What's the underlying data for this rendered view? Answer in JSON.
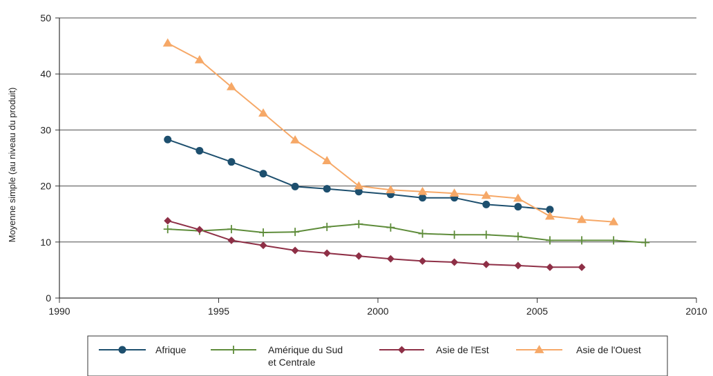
{
  "chart_data": {
    "type": "line",
    "title": "",
    "xlabel": "",
    "ylabel": "Moyenne simple (au niveau du produit)",
    "xlim": [
      1990,
      2010
    ],
    "ylim": [
      0,
      50
    ],
    "x_ticks": [
      1990,
      1995,
      2000,
      2005,
      2010
    ],
    "y_ticks": [
      0,
      10,
      20,
      30,
      40,
      50
    ],
    "grid": "horizontal",
    "legend_position": "bottom",
    "series": [
      {
        "name": "Afrique",
        "color": "#1d4f6e",
        "marker": "circle",
        "x": [
          1993.4,
          1994.4,
          1995.4,
          1996.4,
          1997.4,
          1998.4,
          1999.4,
          2000.4,
          2001.4,
          2002.4,
          2003.4,
          2004.4,
          2005.4
        ],
        "y": [
          28.3,
          26.3,
          24.3,
          22.2,
          19.9,
          19.5,
          19.0,
          18.5,
          17.9,
          17.9,
          16.7,
          16.3,
          15.8
        ]
      },
      {
        "name": "Amérique du Sud et Centrale",
        "name_lines": [
          "Amérique du Sud",
          "et Centrale"
        ],
        "color": "#5e8c3a",
        "marker": "plus",
        "x": [
          1993.4,
          1994.4,
          1995.4,
          1996.4,
          1997.4,
          1998.4,
          1999.4,
          2000.4,
          2001.4,
          2002.4,
          2003.4,
          2004.4,
          2005.4,
          2006.4,
          2007.4,
          2008.4
        ],
        "y": [
          12.3,
          12.0,
          12.3,
          11.7,
          11.8,
          12.7,
          13.2,
          12.6,
          11.5,
          11.3,
          11.3,
          11.0,
          10.3,
          10.3,
          10.3,
          9.9
        ]
      },
      {
        "name": "Asie de l'Est",
        "color": "#8e2f46",
        "marker": "diamond",
        "x": [
          1993.4,
          1994.4,
          1995.4,
          1996.4,
          1997.4,
          1998.4,
          1999.4,
          2000.4,
          2001.4,
          2002.4,
          2003.4,
          2004.4,
          2005.4,
          2006.4
        ],
        "y": [
          13.8,
          12.2,
          10.3,
          9.4,
          8.5,
          8.0,
          7.5,
          7.0,
          6.6,
          6.4,
          6.0,
          5.8,
          5.5,
          5.5
        ]
      },
      {
        "name": "Asie de l'Ouest",
        "color": "#f6a867",
        "marker": "triangle",
        "x": [
          1993.4,
          1994.4,
          1995.4,
          1996.4,
          1997.4,
          1998.4,
          1999.4,
          2000.4,
          2001.4,
          2002.4,
          2003.4,
          2004.4,
          2005.4,
          2006.4,
          2007.4
        ],
        "y": [
          45.5,
          42.5,
          37.7,
          33.0,
          28.2,
          24.5,
          20.0,
          19.3,
          19.0,
          18.7,
          18.3,
          17.8,
          14.6,
          14.0,
          13.6
        ]
      }
    ]
  }
}
